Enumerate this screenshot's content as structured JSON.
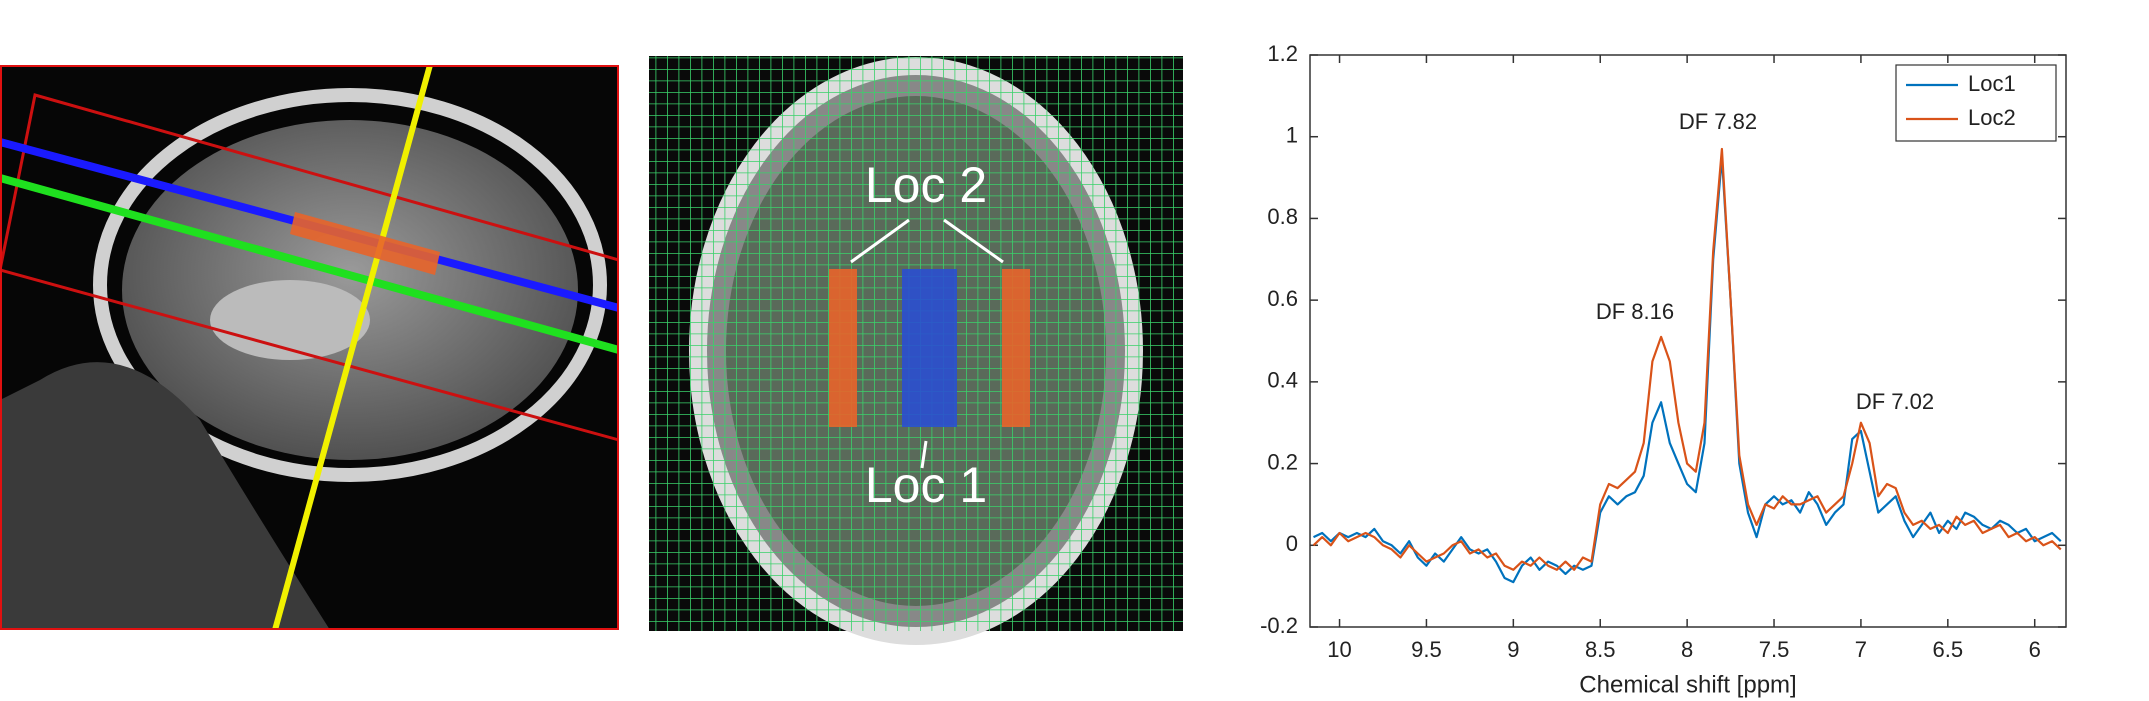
{
  "chart_data": {
    "type": "line",
    "xlabel": "Chemical shift [ppm]",
    "x": [
      10.15,
      10.1,
      10.05,
      10.0,
      9.95,
      9.9,
      9.85,
      9.8,
      9.75,
      9.7,
      9.65,
      9.6,
      9.55,
      9.5,
      9.45,
      9.4,
      9.35,
      9.3,
      9.25,
      9.2,
      9.15,
      9.1,
      9.05,
      9.0,
      8.95,
      8.9,
      8.85,
      8.8,
      8.75,
      8.7,
      8.65,
      8.6,
      8.55,
      8.5,
      8.45,
      8.4,
      8.35,
      8.3,
      8.25,
      8.2,
      8.15,
      8.1,
      8.05,
      8.0,
      7.95,
      7.9,
      7.85,
      7.8,
      7.75,
      7.7,
      7.65,
      7.6,
      7.55,
      7.5,
      7.45,
      7.4,
      7.35,
      7.3,
      7.25,
      7.2,
      7.15,
      7.1,
      7.05,
      7.0,
      6.95,
      6.9,
      6.85,
      6.8,
      6.75,
      6.7,
      6.65,
      6.6,
      6.55,
      6.5,
      6.45,
      6.4,
      6.35,
      6.3,
      6.25,
      6.2,
      6.15,
      6.1,
      6.05,
      6.0,
      5.95,
      5.9,
      5.85
    ],
    "series": [
      {
        "name": "Loc1",
        "color": "#0072bd",
        "values": [
          0.02,
          0.03,
          0.01,
          0.03,
          0.02,
          0.03,
          0.02,
          0.04,
          0.01,
          0.0,
          -0.02,
          0.01,
          -0.03,
          -0.05,
          -0.02,
          -0.04,
          -0.01,
          0.02,
          -0.01,
          -0.02,
          -0.01,
          -0.04,
          -0.08,
          -0.09,
          -0.05,
          -0.03,
          -0.06,
          -0.04,
          -0.05,
          -0.07,
          -0.05,
          -0.06,
          -0.05,
          0.08,
          0.12,
          0.1,
          0.12,
          0.13,
          0.17,
          0.3,
          0.35,
          0.25,
          0.2,
          0.15,
          0.13,
          0.25,
          0.7,
          0.95,
          0.6,
          0.2,
          0.08,
          0.02,
          0.1,
          0.12,
          0.1,
          0.11,
          0.08,
          0.13,
          0.1,
          0.05,
          0.08,
          0.1,
          0.26,
          0.28,
          0.18,
          0.08,
          0.1,
          0.12,
          0.06,
          0.02,
          0.05,
          0.08,
          0.03,
          0.06,
          0.04,
          0.08,
          0.07,
          0.05,
          0.04,
          0.06,
          0.05,
          0.03,
          0.04,
          0.01,
          0.02,
          0.03,
          0.01
        ]
      },
      {
        "name": "Loc2",
        "color": "#d95319",
        "values": [
          0.0,
          0.02,
          0.0,
          0.03,
          0.01,
          0.02,
          0.03,
          0.02,
          0.0,
          -0.01,
          -0.03,
          0.0,
          -0.02,
          -0.04,
          -0.03,
          -0.02,
          0.0,
          0.01,
          -0.02,
          -0.01,
          -0.03,
          -0.02,
          -0.05,
          -0.06,
          -0.04,
          -0.05,
          -0.03,
          -0.05,
          -0.06,
          -0.04,
          -0.06,
          -0.03,
          -0.04,
          0.1,
          0.15,
          0.14,
          0.16,
          0.18,
          0.25,
          0.45,
          0.51,
          0.45,
          0.3,
          0.2,
          0.18,
          0.3,
          0.72,
          0.97,
          0.6,
          0.22,
          0.1,
          0.05,
          0.1,
          0.09,
          0.12,
          0.1,
          0.1,
          0.11,
          0.12,
          0.08,
          0.1,
          0.12,
          0.2,
          0.3,
          0.25,
          0.12,
          0.15,
          0.14,
          0.08,
          0.05,
          0.06,
          0.04,
          0.05,
          0.03,
          0.07,
          0.05,
          0.06,
          0.03,
          0.04,
          0.05,
          0.02,
          0.03,
          0.01,
          0.02,
          0.0,
          0.01,
          -0.01
        ]
      }
    ],
    "annotations": [
      "DF 8.16",
      "DF 7.82",
      "DF 7.02"
    ],
    "xlim": [
      10.17,
      5.82
    ],
    "xticks": [
      10,
      9.5,
      9,
      8.5,
      8,
      7.5,
      7,
      6.5,
      6
    ],
    "ylim": [
      -0.2,
      1.2
    ],
    "yticks": [
      -0.2,
      0,
      0.2,
      0.4,
      0.6,
      0.8,
      1,
      1.2
    ],
    "grid": false,
    "legend": "northeast"
  },
  "image_labels": [
    "Loc 2",
    "Loc 1"
  ]
}
